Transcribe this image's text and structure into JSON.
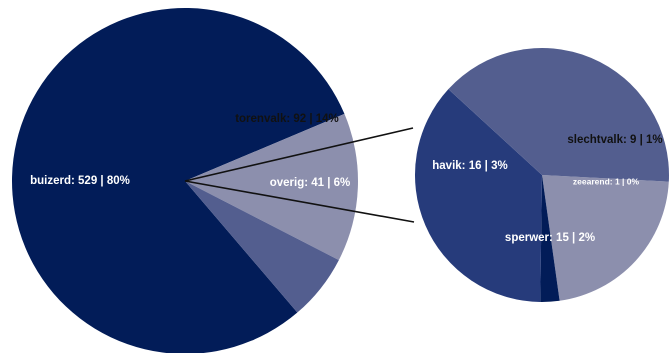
{
  "chart_data": [
    {
      "type": "pie",
      "title": "",
      "slices": [
        {
          "label": "buizerd: 529 | 80%",
          "value": 529,
          "percent": 80,
          "color": "#021c58",
          "text_color": "#ffffff"
        },
        {
          "label": "torenvalk: 92 | 14%",
          "value": 92,
          "percent": 14,
          "color": "#8c8fad",
          "text_color": "#111111"
        },
        {
          "label": "overig: 41 | 6%",
          "value": 41,
          "percent": 6,
          "color": "#535e8f",
          "text_color": "#ffffff"
        }
      ]
    },
    {
      "type": "pie",
      "title": "",
      "slices": [
        {
          "label": "slechtvalk: 9 | 1%",
          "value": 9,
          "percent": 1,
          "color": "#8c8fad",
          "text_color": "#111111"
        },
        {
          "label": "zeearend: 1 | 0%",
          "value": 1,
          "percent": 0,
          "color": "#021c58",
          "text_color": "#ffffff"
        },
        {
          "label": "sperwer: 15 | 2%",
          "value": 15,
          "percent": 2,
          "color": "#263b7b",
          "text_color": "#ffffff"
        },
        {
          "label": "havik: 16 | 3%",
          "value": 16,
          "percent": 3,
          "color": "#535e8f",
          "text_color": "#ffffff"
        }
      ]
    }
  ]
}
